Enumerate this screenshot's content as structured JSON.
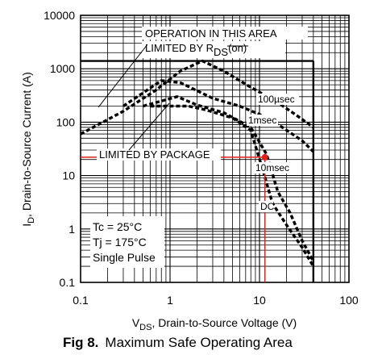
{
  "chart_data": {
    "type": "line",
    "xscale": "log",
    "yscale": "log",
    "xlim": [
      0.1,
      100
    ],
    "ylim": [
      0.1,
      10000
    ],
    "x_ticks": [
      "0.1",
      "1",
      "10",
      "100"
    ],
    "y_ticks": [
      "0.1",
      "1",
      "10",
      "100",
      "1000",
      "10000"
    ],
    "ylabel_main": "I",
    "ylabel_sub": "D",
    "ylabel_rest": ", Drain-to-Source Current (A)",
    "xlabel_main": "V",
    "xlabel_sub": "DS",
    "xlabel_rest": ", Drain-to-Source Voltage (V)",
    "grid": true,
    "annotations": {
      "operation_line1": "OPERATION IN THIS AREA",
      "operation_line2_pre": "LIMITED BY R",
      "operation_line2_sub": "DS",
      "operation_line2_post": "(on)",
      "package": "LIMITED BY PACKAGE",
      "conditions": [
        "Tc = 25°C",
        "Tj = 175°C",
        "Single Pulse"
      ]
    },
    "limits": {
      "package_current_A": 1400,
      "max_voltage_V": 40,
      "marker_point": {
        "x": 11.5,
        "y": 22
      }
    },
    "series": [
      {
        "name": "100µsec",
        "points": [
          [
            0.1,
            60
          ],
          [
            0.3,
            160
          ],
          [
            0.7,
            400
          ],
          [
            1.3,
            900
          ],
          [
            2.3,
            1400
          ],
          [
            4,
            900
          ],
          [
            8,
            450
          ],
          [
            15,
            250
          ],
          [
            25,
            140
          ],
          [
            40,
            80
          ]
        ]
      },
      {
        "name": "1msec",
        "points": [
          [
            0.3,
            200
          ],
          [
            0.8,
            600
          ],
          [
            1.3,
            550
          ],
          [
            3,
            280
          ],
          [
            6,
            200
          ],
          [
            10,
            140
          ],
          [
            18,
            80
          ],
          [
            30,
            45
          ],
          [
            40,
            28
          ]
        ]
      },
      {
        "name": "10msec",
        "points": [
          [
            0.5,
            200
          ],
          [
            1.2,
            300
          ],
          [
            2,
            210
          ],
          [
            4,
            150
          ],
          [
            8,
            80
          ],
          [
            12,
            25
          ],
          [
            16,
            5
          ],
          [
            22,
            2
          ],
          [
            30,
            0.6
          ],
          [
            40,
            0.25
          ]
        ]
      },
      {
        "name": "DC",
        "points": [
          [
            0.6,
            200
          ],
          [
            1.6,
            200
          ],
          [
            2.5,
            170
          ],
          [
            5,
            120
          ],
          [
            8,
            70
          ],
          [
            11,
            12
          ],
          [
            14,
            3
          ],
          [
            20,
            1.2
          ],
          [
            30,
            0.45
          ],
          [
            40,
            0.2
          ]
        ]
      }
    ]
  },
  "caption": {
    "prefix": "Fig 8.",
    "text": "Maximum Safe Operating Area"
  }
}
